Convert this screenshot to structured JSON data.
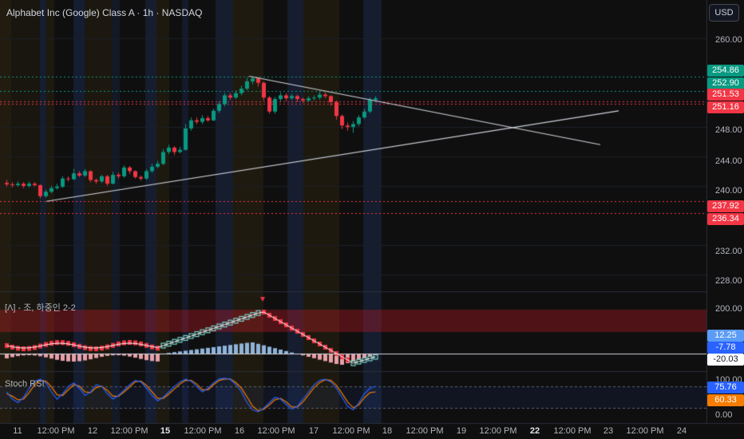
{
  "header": {
    "symbol_title": "Alphabet Inc (Google) Class A · 1h · NASDAQ",
    "currency_button": "USD"
  },
  "indicator_label": "[Λ] - 조, 하중인 2-2",
  "stoch_label": "Stoch RSI",
  "price_axis": {
    "ticks": [
      "260.00",
      "248.00",
      "244.00",
      "240.00",
      "232.00",
      "228.00"
    ]
  },
  "price_tags": [
    {
      "value": "254.86",
      "color": "#089981"
    },
    {
      "value": "252.90",
      "color": "#089981"
    },
    {
      "value": "251.53",
      "color": "#f23645"
    },
    {
      "value": "251.16",
      "color": "#f23645"
    },
    {
      "value": "237.92",
      "color": "#f23645"
    },
    {
      "value": "236.34",
      "color": "#f23645"
    }
  ],
  "indicator_axis": {
    "ticks": [
      "200.00"
    ],
    "tags": [
      {
        "value": "12.25",
        "color": "#5b9cf6"
      },
      {
        "value": "-7.78",
        "color": "#2962ff"
      },
      {
        "value": "-20.03",
        "color": "#ffffff"
      }
    ]
  },
  "stoch_axis": {
    "ticks": [
      "100.00",
      "0.00"
    ],
    "tags": [
      {
        "value": "75.76",
        "color": "#2962ff"
      },
      {
        "value": "60.33",
        "color": "#f57c00"
      }
    ]
  },
  "time_axis": [
    {
      "label": "11",
      "bold": false
    },
    {
      "label": "12:00 PM",
      "bold": false
    },
    {
      "label": "12",
      "bold": false
    },
    {
      "label": "12:00 PM",
      "bold": false
    },
    {
      "label": "15",
      "bold": true
    },
    {
      "label": "12:00 PM",
      "bold": false
    },
    {
      "label": "16",
      "bold": false
    },
    {
      "label": "12:00 PM",
      "bold": false
    },
    {
      "label": "17",
      "bold": false
    },
    {
      "label": "12:00 PM",
      "bold": false
    },
    {
      "label": "18",
      "bold": false
    },
    {
      "label": "12:00 PM",
      "bold": false
    },
    {
      "label": "19",
      "bold": false
    },
    {
      "label": "12:00 PM",
      "bold": false
    },
    {
      "label": "22",
      "bold": true
    },
    {
      "label": "12:00 PM",
      "bold": false
    },
    {
      "label": "23",
      "bold": false
    },
    {
      "label": "12:00 PM",
      "bold": false
    },
    {
      "label": "24",
      "bold": false
    }
  ],
  "chart_data": {
    "type": "candlestick",
    "price_range": [
      226,
      262
    ],
    "candles": [
      [
        240.4,
        240.2,
        240.8,
        239.9
      ],
      [
        240.2,
        240.1,
        240.5,
        239.8
      ],
      [
        240.1,
        240.3,
        240.6,
        239.9
      ],
      [
        240.3,
        240.0,
        240.5,
        239.7
      ],
      [
        240.0,
        240.3,
        240.6,
        239.8
      ],
      [
        240.3,
        240.1,
        240.5,
        239.9
      ],
      [
        240.1,
        238.6,
        240.2,
        238.3
      ],
      [
        238.6,
        239.2,
        239.5,
        238.4
      ],
      [
        239.2,
        239.7,
        240.0,
        239.0
      ],
      [
        239.7,
        239.9,
        240.3,
        239.5
      ],
      [
        239.9,
        241.0,
        241.3,
        239.7
      ],
      [
        241.0,
        240.9,
        241.3,
        240.6
      ],
      [
        240.9,
        241.7,
        242.3,
        240.8
      ],
      [
        241.7,
        241.4,
        242.0,
        241.2
      ],
      [
        241.4,
        242.0,
        242.3,
        241.2
      ],
      [
        242.0,
        240.8,
        242.1,
        240.5
      ],
      [
        240.8,
        240.6,
        241.0,
        240.3
      ],
      [
        240.6,
        241.3,
        241.5,
        240.4
      ],
      [
        241.3,
        240.3,
        241.5,
        240.0
      ],
      [
        240.3,
        241.5,
        241.9,
        240.2
      ],
      [
        241.5,
        241.3,
        241.8,
        241.0
      ],
      [
        241.3,
        242.5,
        242.8,
        241.1
      ],
      [
        242.5,
        242.0,
        242.7,
        241.6
      ],
      [
        242.0,
        241.2,
        242.1,
        241.0
      ],
      [
        241.2,
        241.0,
        241.4,
        240.7
      ],
      [
        241.0,
        242.0,
        242.3,
        240.8
      ],
      [
        242.0,
        242.6,
        243.0,
        241.8
      ],
      [
        242.6,
        243.0,
        243.4,
        242.4
      ],
      [
        243.0,
        244.6,
        245.0,
        242.8
      ],
      [
        244.6,
        245.2,
        245.6,
        244.3
      ],
      [
        245.2,
        244.6,
        245.4,
        244.2
      ],
      [
        244.6,
        244.9,
        245.3,
        244.4
      ],
      [
        244.9,
        247.8,
        248.4,
        244.8
      ],
      [
        247.8,
        248.9,
        249.3,
        247.5
      ],
      [
        248.9,
        248.7,
        249.3,
        248.4
      ],
      [
        248.7,
        249.2,
        249.6,
        248.4
      ],
      [
        249.2,
        248.9,
        249.5,
        248.7
      ],
      [
        248.9,
        250.2,
        250.5,
        248.8
      ],
      [
        250.2,
        251.1,
        251.5,
        249.9
      ],
      [
        251.1,
        252.3,
        252.6,
        250.8
      ],
      [
        252.3,
        252.0,
        252.6,
        251.7
      ],
      [
        252.0,
        252.6,
        253.0,
        251.8
      ],
      [
        252.6,
        253.2,
        253.6,
        252.3
      ],
      [
        253.2,
        254.2,
        254.7,
        253.0
      ],
      [
        254.2,
        254.6,
        254.9,
        253.8
      ],
      [
        254.6,
        254.0,
        254.8,
        253.5
      ],
      [
        254.0,
        252.0,
        254.2,
        251.6
      ],
      [
        252.0,
        250.1,
        252.2,
        249.8
      ],
      [
        250.1,
        251.8,
        252.1,
        249.8
      ],
      [
        251.8,
        252.3,
        252.7,
        251.5
      ],
      [
        252.3,
        251.9,
        252.6,
        251.5
      ],
      [
        251.9,
        252.2,
        252.5,
        251.7
      ],
      [
        252.2,
        251.8,
        252.4,
        251.4
      ],
      [
        251.8,
        251.6,
        252.0,
        251.3
      ],
      [
        251.6,
        251.9,
        252.2,
        251.4
      ],
      [
        251.9,
        252.0,
        252.3,
        251.6
      ],
      [
        252.0,
        252.4,
        252.8,
        251.7
      ],
      [
        252.4,
        252.2,
        252.7,
        251.9
      ],
      [
        252.2,
        251.4,
        252.3,
        250.9
      ],
      [
        251.4,
        249.5,
        251.6,
        249.0
      ],
      [
        249.5,
        248.2,
        249.7,
        247.7
      ],
      [
        248.2,
        248.0,
        248.6,
        247.5
      ],
      [
        248.0,
        248.4,
        248.8,
        247.2
      ],
      [
        248.4,
        249.3,
        249.6,
        248.1
      ],
      [
        249.3,
        250.1,
        250.5,
        249.1
      ],
      [
        250.1,
        251.7,
        252.0,
        249.9
      ],
      [
        251.7,
        251.9,
        252.2,
        251.4
      ]
    ],
    "trendlines": [
      {
        "from": [
          0,
          237.9
        ],
        "to": [
          76,
          251.3
        ],
        "color": "#d1d4dc"
      },
      {
        "from": [
          40,
          254.9
        ],
        "to": [
          82,
          245.3
        ],
        "color": "#d1d4dc"
      }
    ],
    "horizontal_levels": [
      254.86,
      252.9,
      251.53,
      251.16,
      237.92,
      236.34
    ]
  }
}
